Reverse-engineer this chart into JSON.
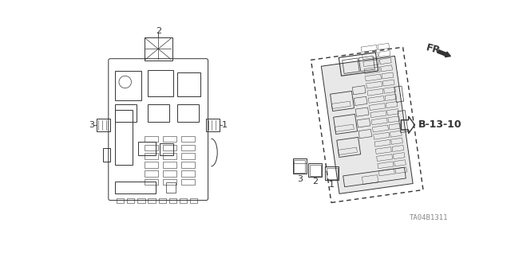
{
  "bg_color": "#ffffff",
  "fig_width": 6.4,
  "fig_height": 3.19,
  "dpi": 100,
  "fr_label": "FR.",
  "part_ref": "B-13-10",
  "bottom_ref": "TA04B1311",
  "dark": "#333333",
  "gray": "#888888",
  "light_gray": "#cccccc"
}
